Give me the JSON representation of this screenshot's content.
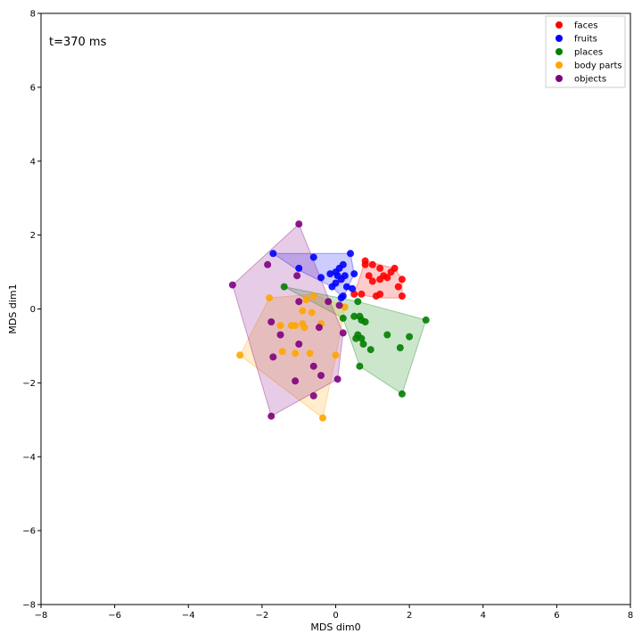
{
  "chart_data": {
    "type": "scatter",
    "annotation": "t=370 ms",
    "xlabel": "MDS dim0",
    "ylabel": "MDS dim1",
    "xlim": [
      -8,
      8
    ],
    "ylim": [
      -8,
      8
    ],
    "xticks": [
      -8,
      -6,
      -4,
      -2,
      0,
      2,
      4,
      6,
      8
    ],
    "yticks": [
      -8,
      -6,
      -4,
      -2,
      0,
      2,
      4,
      6,
      8
    ],
    "grid": false,
    "legend_position": "top-right",
    "series": [
      {
        "name": "faces",
        "color": "#ff0000",
        "hull": [
          [
            1.8,
            0.8
          ],
          [
            1.8,
            0.3
          ],
          [
            1.2,
            0.3
          ],
          [
            0.5,
            0.4
          ],
          [
            0.8,
            1.3
          ],
          [
            1.6,
            1.1
          ]
        ],
        "points": [
          [
            0.8,
            1.3
          ],
          [
            0.8,
            1.2
          ],
          [
            1.0,
            1.2
          ],
          [
            1.2,
            1.1
          ],
          [
            1.6,
            1.1
          ],
          [
            1.5,
            1.0
          ],
          [
            0.9,
            0.9
          ],
          [
            1.3,
            0.9
          ],
          [
            1.2,
            0.8
          ],
          [
            1.4,
            0.85
          ],
          [
            1.8,
            0.8
          ],
          [
            1.0,
            0.75
          ],
          [
            1.7,
            0.6
          ],
          [
            1.2,
            0.4
          ],
          [
            0.5,
            0.4
          ],
          [
            0.7,
            0.4
          ],
          [
            1.8,
            0.35
          ],
          [
            1.1,
            0.35
          ]
        ]
      },
      {
        "name": "fruits",
        "color": "#0000ff",
        "hull": [
          [
            -1.7,
            1.5
          ],
          [
            0.4,
            1.5
          ],
          [
            0.5,
            0.95
          ],
          [
            0.2,
            0.3
          ],
          [
            -0.1,
            0.6
          ],
          [
            -1.1,
            1.1
          ]
        ],
        "points": [
          [
            -1.7,
            1.5
          ],
          [
            0.4,
            1.5
          ],
          [
            -0.6,
            1.4
          ],
          [
            0.2,
            1.2
          ],
          [
            0.1,
            1.1
          ],
          [
            -1.0,
            1.1
          ],
          [
            0.0,
            1.0
          ],
          [
            -0.15,
            0.95
          ],
          [
            0.5,
            0.95
          ],
          [
            0.05,
            0.9
          ],
          [
            0.25,
            0.9
          ],
          [
            -0.4,
            0.85
          ],
          [
            0.15,
            0.8
          ],
          [
            0.0,
            0.7
          ],
          [
            0.3,
            0.6
          ],
          [
            0.45,
            0.55
          ],
          [
            -0.1,
            0.6
          ],
          [
            0.2,
            0.35
          ],
          [
            0.15,
            0.3
          ]
        ]
      },
      {
        "name": "places",
        "color": "#008000",
        "hull": [
          [
            -1.4,
            0.6
          ],
          [
            0.6,
            0.2
          ],
          [
            2.45,
            -0.3
          ],
          [
            1.8,
            -2.3
          ],
          [
            0.65,
            -1.55
          ],
          [
            0.2,
            -0.25
          ]
        ],
        "points": [
          [
            -1.4,
            0.6
          ],
          [
            0.6,
            0.2
          ],
          [
            0.5,
            -0.2
          ],
          [
            0.65,
            -0.2
          ],
          [
            0.7,
            -0.3
          ],
          [
            0.2,
            -0.25
          ],
          [
            0.8,
            -0.35
          ],
          [
            2.45,
            -0.3
          ],
          [
            1.4,
            -0.7
          ],
          [
            2.0,
            -0.75
          ],
          [
            0.6,
            -0.7
          ],
          [
            0.55,
            -0.8
          ],
          [
            0.7,
            -0.8
          ],
          [
            0.75,
            -0.95
          ],
          [
            1.75,
            -1.05
          ],
          [
            0.95,
            -1.1
          ],
          [
            0.65,
            -1.55
          ],
          [
            1.8,
            -2.3
          ]
        ]
      },
      {
        "name": "body parts",
        "color": "#ffa500",
        "hull": [
          [
            -1.8,
            0.3
          ],
          [
            -0.6,
            0.4
          ],
          [
            0.25,
            0.05
          ],
          [
            0.0,
            -1.3
          ],
          [
            -0.35,
            -2.95
          ],
          [
            -2.6,
            -1.25
          ]
        ],
        "points": [
          [
            -1.8,
            0.3
          ],
          [
            -0.6,
            0.35
          ],
          [
            -0.8,
            0.25
          ],
          [
            0.25,
            0.05
          ],
          [
            -0.9,
            -0.05
          ],
          [
            -0.65,
            -0.1
          ],
          [
            -1.5,
            -0.45
          ],
          [
            -1.2,
            -0.45
          ],
          [
            -1.1,
            -0.45
          ],
          [
            -0.9,
            -0.4
          ],
          [
            -0.85,
            -0.5
          ],
          [
            -0.4,
            -0.4
          ],
          [
            -1.45,
            -1.15
          ],
          [
            -1.1,
            -1.2
          ],
          [
            -0.7,
            -1.2
          ],
          [
            0.0,
            -1.25
          ],
          [
            -2.6,
            -1.25
          ],
          [
            -0.35,
            -2.95
          ]
        ]
      },
      {
        "name": "objects",
        "color": "#800080",
        "hull": [
          [
            -1.0,
            2.3
          ],
          [
            -0.2,
            0.3
          ],
          [
            0.2,
            -0.65
          ],
          [
            0.05,
            -1.9
          ],
          [
            -1.75,
            -2.9
          ],
          [
            -2.8,
            0.65
          ]
        ],
        "points": [
          [
            -1.0,
            2.3
          ],
          [
            -1.85,
            1.2
          ],
          [
            -1.05,
            0.9
          ],
          [
            -2.8,
            0.65
          ],
          [
            -1.0,
            0.2
          ],
          [
            -0.2,
            0.2
          ],
          [
            0.1,
            0.1
          ],
          [
            -1.75,
            -0.35
          ],
          [
            -1.5,
            -0.7
          ],
          [
            -0.45,
            -0.5
          ],
          [
            0.2,
            -0.65
          ],
          [
            -1.0,
            -0.95
          ],
          [
            -1.7,
            -1.3
          ],
          [
            -0.6,
            -1.55
          ],
          [
            -0.4,
            -1.8
          ],
          [
            0.05,
            -1.9
          ],
          [
            -1.1,
            -1.95
          ],
          [
            -0.6,
            -2.35
          ],
          [
            -1.75,
            -2.9
          ]
        ]
      }
    ]
  }
}
